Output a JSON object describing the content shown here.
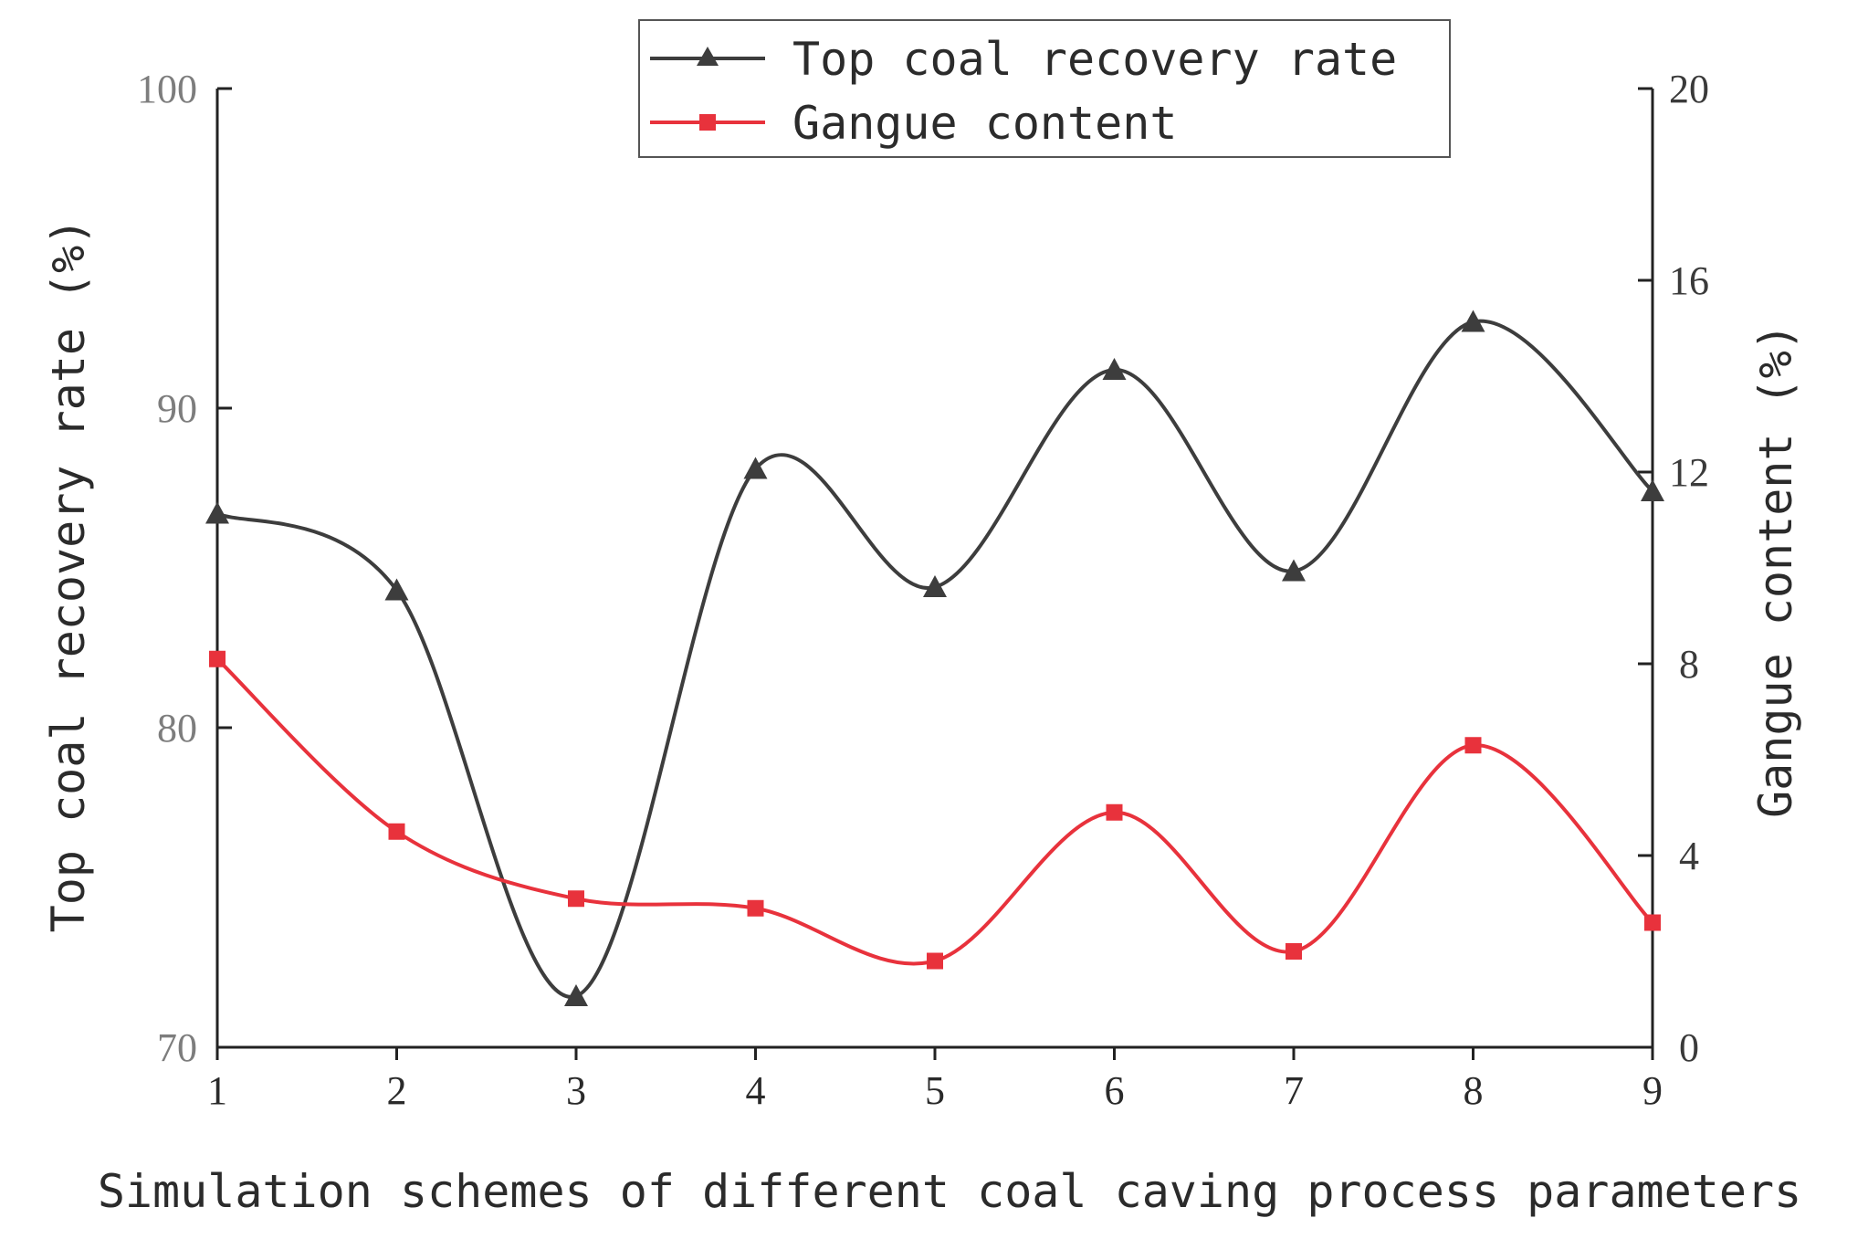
{
  "chart_data": {
    "type": "line",
    "title": "",
    "xlabel": "Simulation schemes of different coal caving process parameters",
    "ylabel": "Top coal recovery rate (%)",
    "y2label": "Gangue content (%)",
    "x": [
      1,
      2,
      3,
      4,
      5,
      6,
      7,
      8,
      9
    ],
    "xlim": [
      1,
      9
    ],
    "ylim": [
      70,
      100
    ],
    "y2lim": [
      0,
      20
    ],
    "yticks": [
      "70",
      "80",
      "90",
      "100"
    ],
    "y2ticks": [
      "0",
      "4",
      "8",
      "12",
      "16",
      "20"
    ],
    "xticks": [
      "1",
      "2",
      "3",
      "4",
      "5",
      "6",
      "7",
      "8",
      "9"
    ],
    "legend_position": "top-center",
    "series": [
      {
        "name": "Top coal recovery rate",
        "axis": "left",
        "marker": "triangle",
        "color": "#3d3d3d",
        "values": [
          86.7,
          84.3,
          71.6,
          88.1,
          84.4,
          91.2,
          84.9,
          92.7,
          87.4
        ]
      },
      {
        "name": "Gangue content",
        "axis": "right",
        "marker": "square",
        "color": "#e8323c",
        "values": [
          8.1,
          4.5,
          3.1,
          2.9,
          1.8,
          4.9,
          2.0,
          6.3,
          2.6
        ]
      }
    ]
  }
}
